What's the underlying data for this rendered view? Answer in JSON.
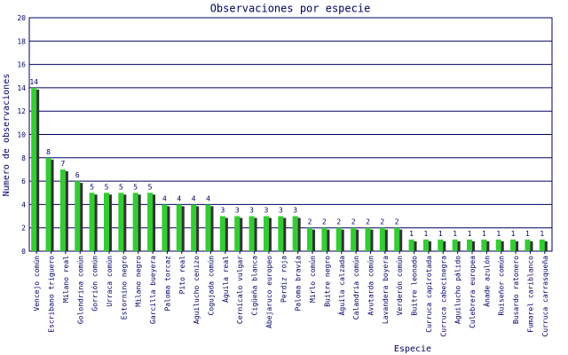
{
  "chart_data": {
    "type": "bar",
    "title": "Observaciones por especie",
    "x_label": "Especie",
    "y_label": "Numero de observaciones",
    "categories": [
      "Vencejo común",
      "Escribano triguero",
      "Milano real",
      "Golondrina común",
      "Gorrión común",
      "Urraca común",
      "Estornino negro",
      "Milano negro",
      "Garcilla bueyera",
      "Paloma torcaz",
      "Pito real",
      "Aguilucho cenizo",
      "Cogujada común",
      "Águila real",
      "Cernícalo vulgar",
      "Cigüeña blanca",
      "Abejaruco europeo",
      "Perdiz roja",
      "Paloma bravía",
      "Mirlo común",
      "Buitre negro",
      "Águila calzada",
      "Calandria común",
      "Avutarda común",
      "Lavandera boyera",
      "Verderón común",
      "Buitre leonado",
      "Curruca capirotada",
      "Curruca cabecinegra",
      "Aguilucho pálido",
      "Culebrera europea",
      "Ánade azulón",
      "Ruiseñor común",
      "Busardo ratonero",
      "Fumarel cariblanco",
      "Curruca carrasqueña"
    ],
    "values": [
      14,
      8,
      7,
      6,
      5,
      5,
      5,
      5,
      5,
      4,
      4,
      4,
      4,
      3,
      3,
      3,
      3,
      3,
      3,
      2,
      2,
      2,
      2,
      2,
      2,
      2,
      1,
      1,
      1,
      1,
      1,
      1,
      1,
      1,
      1,
      1
    ],
    "color": "#33cc33",
    "ylim": [
      0,
      20
    ],
    "yticks": [
      0,
      2,
      4,
      6,
      8,
      10,
      12,
      14,
      16,
      18,
      20
    ],
    "grid": true
  }
}
